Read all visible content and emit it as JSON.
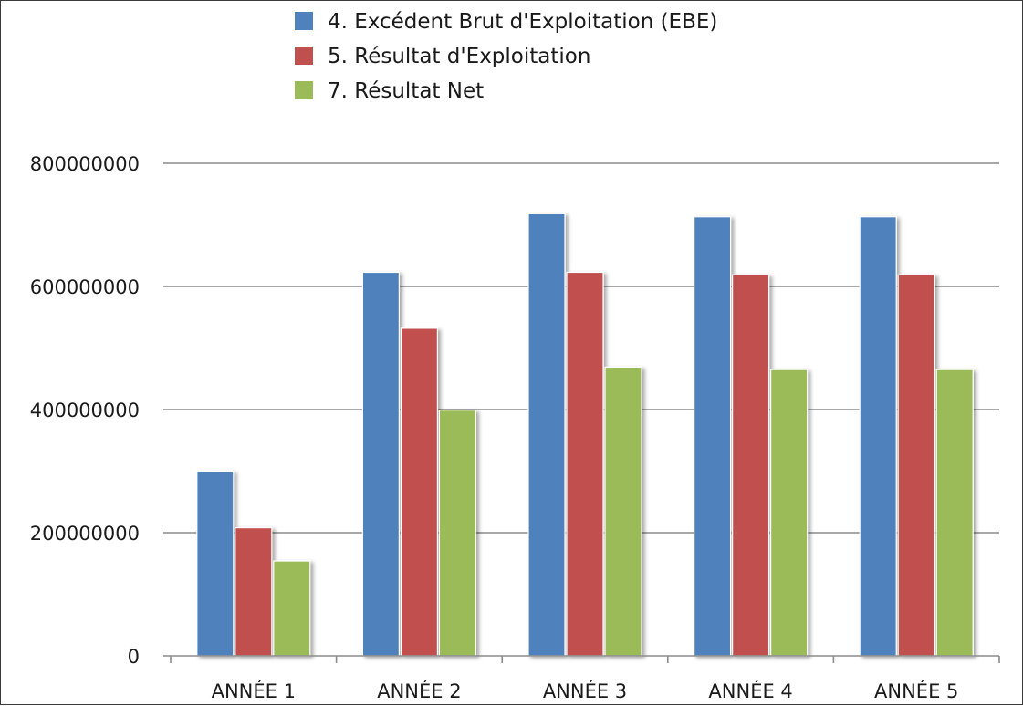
{
  "chart_data": {
    "type": "bar",
    "title": "",
    "xlabel": "",
    "ylabel": "",
    "categories": [
      "ANNÉE 1",
      "ANNÉE 2",
      "ANNÉE 3",
      "ANNÉE 4",
      "ANNÉE 5"
    ],
    "series": [
      {
        "name": "4. Excédent Brut d'Exploitation (EBE)",
        "color": "#4f81bd",
        "values": [
          300000000,
          623000000,
          718000000,
          713000000,
          713000000
        ]
      },
      {
        "name": "5. Résultat d'Exploitation",
        "color": "#c0504d",
        "values": [
          208000000,
          532000000,
          623000000,
          619000000,
          619000000
        ]
      },
      {
        "name": "7. Résultat Net",
        "color": "#9bbb59",
        "values": [
          154000000,
          399000000,
          469000000,
          465000000,
          465000000
        ]
      }
    ],
    "ylim": [
      0,
      800000000
    ],
    "yticks": [
      "0",
      "200000000",
      "400000000",
      "600000000",
      "800000000"
    ],
    "grid": true,
    "legend_position": "top-center"
  }
}
